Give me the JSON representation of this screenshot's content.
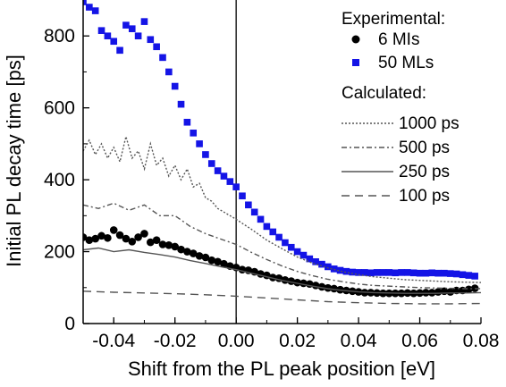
{
  "chart_data": {
    "type": "scatter",
    "title": "",
    "xlabel": "Shift from the PL peak position [eV]",
    "ylabel": "Initial PL decay time [ps]",
    "xlim": [
      -0.05,
      0.08
    ],
    "ylim": [
      0,
      900
    ],
    "x_ticks": [
      -0.04,
      -0.02,
      0.0,
      0.02,
      0.04,
      0.06,
      0.08
    ],
    "x_tick_labels": [
      "-0.04",
      "-0.02",
      "0.00",
      "0.02",
      "0.04",
      "0.06",
      "0.08"
    ],
    "y_ticks": [
      0,
      200,
      400,
      600,
      800
    ],
    "y_tick_labels": [
      "0",
      "200",
      "400",
      "600",
      "800"
    ],
    "vline_x": 0.0,
    "legend": {
      "position": "top-right",
      "experimental_heading": "Experimental:",
      "calculated_heading": "Calculated:"
    },
    "series": [
      {
        "name": "6 MIs",
        "kind": "marker",
        "marker": "circle",
        "color": "#000000",
        "x": [
          -0.05,
          -0.048,
          -0.046,
          -0.044,
          -0.042,
          -0.04,
          -0.038,
          -0.036,
          -0.034,
          -0.032,
          -0.03,
          -0.028,
          -0.026,
          -0.024,
          -0.022,
          -0.02,
          -0.018,
          -0.016,
          -0.014,
          -0.012,
          -0.01,
          -0.008,
          -0.006,
          -0.004,
          -0.002,
          0.0,
          0.002,
          0.004,
          0.006,
          0.008,
          0.01,
          0.012,
          0.014,
          0.016,
          0.018,
          0.02,
          0.022,
          0.024,
          0.026,
          0.028,
          0.03,
          0.032,
          0.034,
          0.036,
          0.038,
          0.04,
          0.042,
          0.044,
          0.046,
          0.048,
          0.05,
          0.052,
          0.054,
          0.056,
          0.058,
          0.06,
          0.062,
          0.064,
          0.066,
          0.068,
          0.07,
          0.072,
          0.074,
          0.076,
          0.078
        ],
        "y": [
          240,
          232,
          236,
          244,
          238,
          260,
          246,
          236,
          228,
          240,
          250,
          226,
          232,
          220,
          218,
          214,
          206,
          200,
          195,
          188,
          184,
          176,
          172,
          166,
          160,
          156,
          150,
          148,
          144,
          138,
          134,
          128,
          126,
          121,
          118,
          114,
          112,
          110,
          106,
          102,
          99,
          97,
          94,
          92,
          90,
          88,
          86,
          86,
          85,
          84,
          84,
          84,
          84,
          85,
          84,
          85,
          86,
          86,
          88,
          90,
          88,
          92,
          92,
          95,
          98
        ]
      },
      {
        "name": "50 MLs",
        "kind": "marker",
        "marker": "square",
        "color": "#1414e6",
        "x": [
          -0.05,
          -0.048,
          -0.046,
          -0.044,
          -0.042,
          -0.04,
          -0.038,
          -0.036,
          -0.034,
          -0.032,
          -0.03,
          -0.028,
          -0.026,
          -0.024,
          -0.022,
          -0.02,
          -0.018,
          -0.016,
          -0.014,
          -0.012,
          -0.01,
          -0.008,
          -0.006,
          -0.004,
          -0.002,
          0.0,
          0.002,
          0.004,
          0.006,
          0.008,
          0.01,
          0.012,
          0.014,
          0.016,
          0.018,
          0.02,
          0.022,
          0.024,
          0.026,
          0.028,
          0.03,
          0.032,
          0.034,
          0.036,
          0.038,
          0.04,
          0.042,
          0.044,
          0.046,
          0.048,
          0.05,
          0.052,
          0.054,
          0.056,
          0.058,
          0.06,
          0.062,
          0.064,
          0.066,
          0.068,
          0.07,
          0.072,
          0.074,
          0.076,
          0.078
        ],
        "y": [
          895,
          880,
          870,
          815,
          800,
          785,
          760,
          830,
          820,
          800,
          840,
          790,
          770,
          740,
          700,
          660,
          610,
          560,
          530,
          500,
          470,
          445,
          425,
          410,
          395,
          380,
          355,
          330,
          310,
          290,
          270,
          255,
          240,
          225,
          212,
          200,
          190,
          180,
          172,
          165,
          158,
          152,
          148,
          145,
          143,
          142,
          142,
          141,
          142,
          142,
          142,
          141,
          142,
          142,
          141,
          140,
          140,
          141,
          140,
          140,
          139,
          138,
          136,
          134,
          132
        ]
      },
      {
        "name": "1000 ps",
        "kind": "line",
        "dash": "2,2",
        "color": "#555555",
        "x": [
          -0.05,
          -0.048,
          -0.046,
          -0.044,
          -0.042,
          -0.04,
          -0.038,
          -0.036,
          -0.034,
          -0.032,
          -0.03,
          -0.028,
          -0.026,
          -0.024,
          -0.022,
          -0.02,
          -0.018,
          -0.016,
          -0.014,
          -0.012,
          -0.01,
          -0.008,
          -0.006,
          -0.004,
          -0.002,
          0.0,
          0.005,
          0.01,
          0.015,
          0.02,
          0.025,
          0.03,
          0.035,
          0.04,
          0.045,
          0.05,
          0.055,
          0.06,
          0.065,
          0.07,
          0.075,
          0.08
        ],
        "y": [
          480,
          510,
          470,
          500,
          460,
          490,
          450,
          520,
          460,
          480,
          430,
          500,
          440,
          460,
          410,
          440,
          400,
          430,
          380,
          390,
          350,
          340,
          320,
          310,
          300,
          290,
          262,
          232,
          208,
          185,
          168,
          155,
          144,
          136,
          130,
          126,
          122,
          120,
          118,
          116,
          115,
          114
        ]
      },
      {
        "name": "500 ps",
        "kind": "line",
        "dash": "6,3,2,3",
        "color": "#555555",
        "x": [
          -0.05,
          -0.045,
          -0.04,
          -0.035,
          -0.03,
          -0.025,
          -0.02,
          -0.015,
          -0.01,
          -0.005,
          0.0,
          0.005,
          0.01,
          0.015,
          0.02,
          0.025,
          0.03,
          0.035,
          0.04,
          0.045,
          0.05,
          0.055,
          0.06,
          0.065,
          0.07,
          0.075,
          0.08
        ],
        "y": [
          330,
          320,
          335,
          315,
          330,
          300,
          300,
          270,
          250,
          235,
          220,
          198,
          178,
          160,
          145,
          133,
          123,
          116,
          110,
          106,
          104,
          102,
          100,
          99,
          98,
          97,
          97
        ]
      },
      {
        "name": "250 ps",
        "kind": "line",
        "dash": "",
        "color": "#555555",
        "x": [
          -0.05,
          -0.045,
          -0.04,
          -0.035,
          -0.03,
          -0.025,
          -0.02,
          -0.015,
          -0.01,
          -0.005,
          0.0,
          0.005,
          0.01,
          0.015,
          0.02,
          0.025,
          0.03,
          0.035,
          0.04,
          0.045,
          0.05,
          0.055,
          0.06,
          0.065,
          0.07,
          0.075,
          0.08
        ],
        "y": [
          205,
          210,
          200,
          205,
          198,
          192,
          185,
          175,
          167,
          158,
          150,
          140,
          130,
          120,
          112,
          104,
          97,
          92,
          88,
          86,
          85,
          84,
          84,
          84,
          85,
          85,
          86
        ]
      },
      {
        "name": "100 ps",
        "kind": "line",
        "dash": "9,6",
        "color": "#555555",
        "x": [
          -0.05,
          -0.04,
          -0.03,
          -0.02,
          -0.01,
          0.0,
          0.01,
          0.02,
          0.03,
          0.04,
          0.05,
          0.06,
          0.07,
          0.08
        ],
        "y": [
          90,
          87,
          85,
          83,
          80,
          76,
          71,
          66,
          61,
          58,
          56,
          55,
          55,
          56
        ]
      }
    ]
  }
}
